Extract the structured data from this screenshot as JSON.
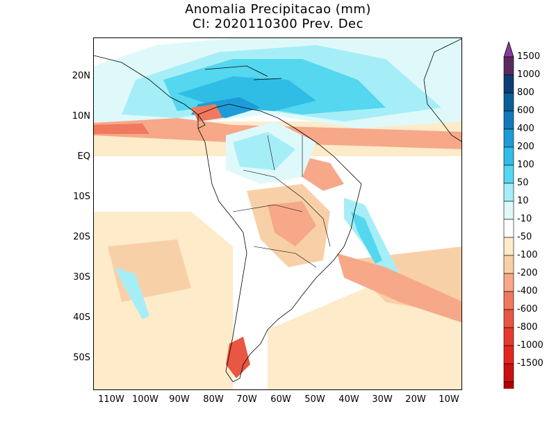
{
  "title_line1": "Anomalia Precipitacao (mm)",
  "title_line2": "CI: 2020110300 Prev. Dec",
  "lat_labels": [
    "20N",
    "10N",
    "EQ",
    "10S",
    "20S",
    "30S",
    "40S",
    "50S"
  ],
  "lon_labels": [
    "110W",
    "100W",
    "90W",
    "80W",
    "70W",
    "60W",
    "50W",
    "40W",
    "30W",
    "20W",
    "10W"
  ],
  "colorbar": {
    "labels": [
      "1500",
      "1000",
      "800",
      "600",
      "400",
      "200",
      "100",
      "50",
      "10",
      "-10",
      "-50",
      "-100",
      "-200",
      "-400",
      "-600",
      "-800",
      "-1000",
      "-1500"
    ],
    "colors": [
      "#5a2a5e",
      "#0b3f73",
      "#0b5e97",
      "#1479b8",
      "#1e9cd7",
      "#2fbde6",
      "#54d7ef",
      "#a6eef7",
      "#dff9fb",
      "#ffffff",
      "#fdebc9",
      "#f8d0a8",
      "#f6a889",
      "#f0795f",
      "#e85744",
      "#e53a2c",
      "#e3271f",
      "#cc1010",
      "#b20000"
    ],
    "top_arrow_color": "#8a3a9a",
    "bottom_arrow_color": "#a00000"
  },
  "map": {
    "lon_range": [
      -115,
      -7
    ],
    "lat_range": [
      -58,
      30
    ]
  }
}
